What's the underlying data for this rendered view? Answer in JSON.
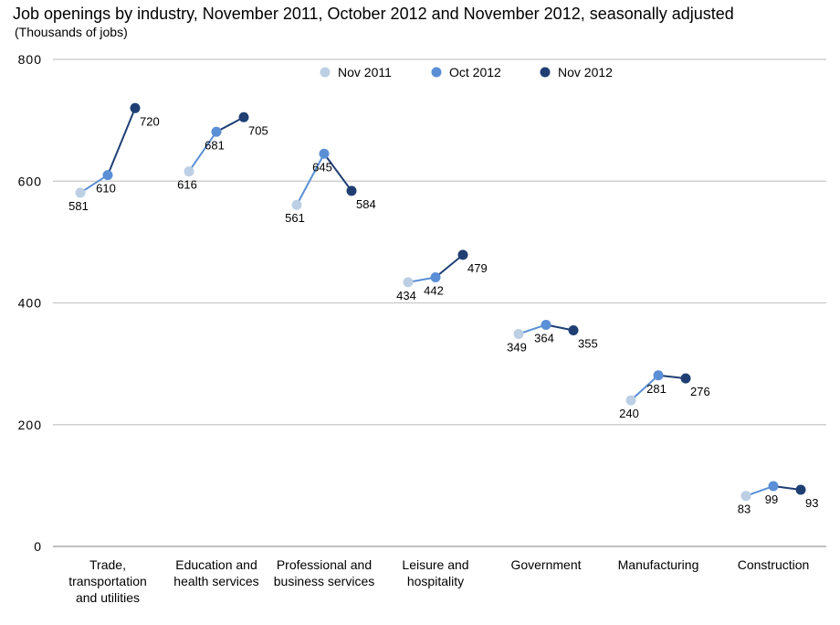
{
  "chart_data": {
    "type": "line",
    "title": "Job openings by industry, November 2011, October 2012 and November 2012, seasonally adjusted",
    "subtitle": "(Thousands of jobs)",
    "ylim": [
      0,
      800
    ],
    "yticks": [
      "0",
      "200",
      "400",
      "600",
      "800"
    ],
    "grid": true,
    "legend_position": "top",
    "categories": [
      [
        "Trade,",
        "transportation",
        "and utilities"
      ],
      [
        "Education and",
        "health services"
      ],
      [
        "Professional and",
        "business services"
      ],
      [
        "Leisure and",
        "hospitality"
      ],
      [
        "Government"
      ],
      [
        "Manufacturing"
      ],
      [
        "Construction"
      ]
    ],
    "series": [
      {
        "name": "Nov 2011",
        "color": "#bccfe4",
        "values": [
          581,
          616,
          561,
          434,
          349,
          240,
          83
        ]
      },
      {
        "name": "Oct 2012",
        "color": "#5b8fd6",
        "values": [
          610,
          681,
          645,
          442,
          364,
          281,
          99
        ]
      },
      {
        "name": "Nov 2012",
        "color": "#1f3f73",
        "values": [
          720,
          705,
          584,
          479,
          355,
          276,
          93
        ]
      }
    ]
  }
}
